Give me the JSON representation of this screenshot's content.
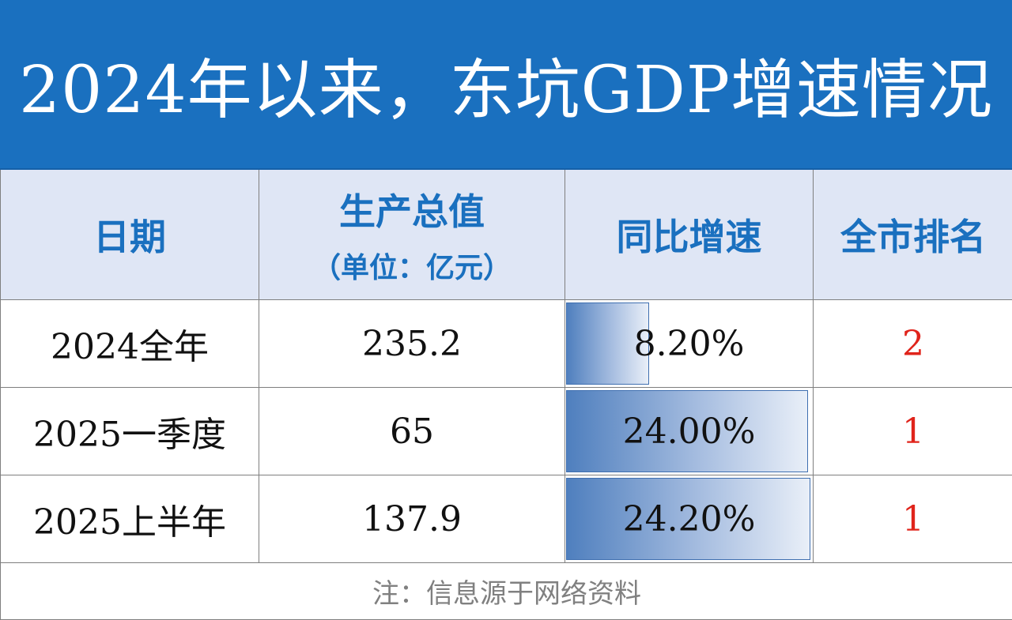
{
  "chart_data": {
    "type": "table",
    "title": "2024年以来，东坑GDP增速情况",
    "columns": {
      "date": "日期",
      "gdp": "生产总值",
      "gdp_unit": "（单位：亿元）",
      "growth": "同比增速",
      "rank": "全市排名"
    },
    "rows": [
      {
        "date": "2024全年",
        "gdp": "235.2",
        "growth": "8.20%",
        "growth_value": 8.2,
        "rank": "2"
      },
      {
        "date": "2025一季度",
        "gdp": "65",
        "growth": "24.00%",
        "growth_value": 24.0,
        "rank": "1"
      },
      {
        "date": "2025上半年",
        "gdp": "137.9",
        "growth": "24.20%",
        "growth_value": 24.2,
        "rank": "1"
      }
    ],
    "growth_bar_max": 24.2,
    "note": "注：信息源于网络资料"
  },
  "colors": {
    "title_background": "#1a70bf",
    "header_background": "#dfe6f5",
    "header_text": "#1a70bf",
    "rank_text": "#e0241b",
    "note_text": "#808080"
  }
}
